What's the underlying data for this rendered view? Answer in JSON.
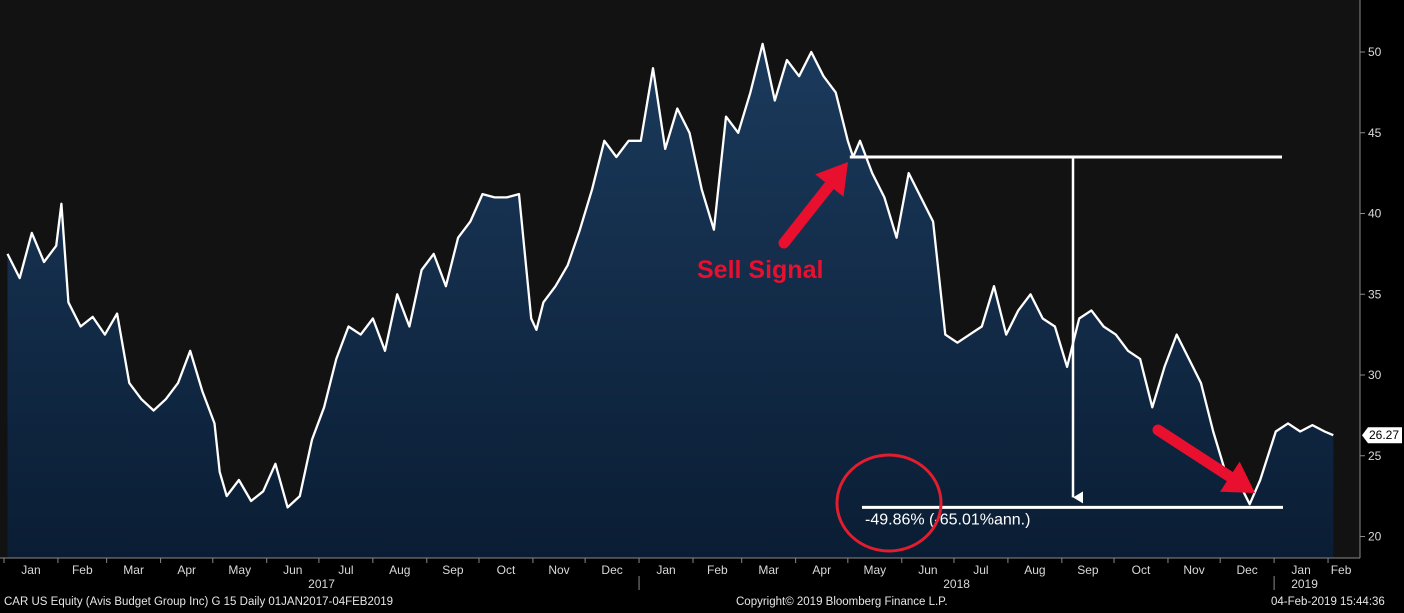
{
  "chart_data": {
    "type": "area",
    "ticker_label": "CAR US Equity (Avis Budget Group Inc) G 15  Daily 01JAN2017-04FEB2019",
    "copyright": "Copyright© 2019 Bloomberg Finance L.P.",
    "timestamp": "04-Feb-2019 15:44:36",
    "y_ticks": [
      20,
      25,
      30,
      35,
      40,
      45,
      50
    ],
    "ylim": [
      18.9,
      52.3
    ],
    "last_value_label": "26.27",
    "last_value": 26.27,
    "x_months": [
      "Jan",
      "Feb",
      "Mar",
      "Apr",
      "May",
      "Jun",
      "Jul",
      "Aug",
      "Sep",
      "Oct",
      "Nov",
      "Dec",
      "Jan",
      "Feb",
      "Mar",
      "Apr",
      "May",
      "Jun",
      "Jul",
      "Aug",
      "Sep",
      "Oct",
      "Nov",
      "Dec",
      "Jan",
      "Feb"
    ],
    "years": [
      "2017",
      "2018",
      "2019"
    ],
    "series": [
      {
        "x": [
          "2017-01-03",
          "2017-01-10",
          "2017-01-17",
          "2017-01-24",
          "2017-01-31",
          "2017-02-03",
          "2017-02-07",
          "2017-02-14",
          "2017-02-21",
          "2017-02-28",
          "2017-03-07",
          "2017-03-14",
          "2017-03-21",
          "2017-03-28",
          "2017-04-04",
          "2017-04-11",
          "2017-04-18",
          "2017-04-25",
          "2017-05-02",
          "2017-05-05",
          "2017-05-09",
          "2017-05-16",
          "2017-05-23",
          "2017-05-30",
          "2017-06-06",
          "2017-06-13",
          "2017-06-20",
          "2017-06-27",
          "2017-07-04",
          "2017-07-11",
          "2017-07-18",
          "2017-07-25",
          "2017-08-01",
          "2017-08-08",
          "2017-08-15",
          "2017-08-22",
          "2017-08-29",
          "2017-09-05",
          "2017-09-12",
          "2017-09-19",
          "2017-09-26",
          "2017-10-03",
          "2017-10-10",
          "2017-10-17",
          "2017-10-24",
          "2017-10-31",
          "2017-11-03",
          "2017-11-07",
          "2017-11-14",
          "2017-11-21",
          "2017-11-28",
          "2017-12-05",
          "2017-12-12",
          "2017-12-19",
          "2017-12-26",
          "2018-01-02",
          "2018-01-09",
          "2018-01-16",
          "2018-01-23",
          "2018-01-30",
          "2018-02-06",
          "2018-02-13",
          "2018-02-20",
          "2018-02-27",
          "2018-03-06",
          "2018-03-13",
          "2018-03-20",
          "2018-03-27",
          "2018-04-03",
          "2018-04-10",
          "2018-04-17",
          "2018-04-24",
          "2018-05-01",
          "2018-05-04",
          "2018-05-08",
          "2018-05-15",
          "2018-05-22",
          "2018-05-29",
          "2018-06-05",
          "2018-06-12",
          "2018-06-19",
          "2018-06-26",
          "2018-07-03",
          "2018-07-10",
          "2018-07-17",
          "2018-07-24",
          "2018-07-31",
          "2018-08-07",
          "2018-08-14",
          "2018-08-21",
          "2018-08-28",
          "2018-09-04",
          "2018-09-11",
          "2018-09-18",
          "2018-09-25",
          "2018-10-02",
          "2018-10-09",
          "2018-10-16",
          "2018-10-23",
          "2018-10-30",
          "2018-11-06",
          "2018-11-13",
          "2018-11-20",
          "2018-11-27",
          "2018-12-04",
          "2018-12-11",
          "2018-12-18",
          "2018-12-24",
          "2019-01-02",
          "2019-01-09",
          "2019-01-16",
          "2019-01-23",
          "2019-01-30",
          "2019-02-04"
        ],
        "y": [
          37.5,
          36.0,
          38.8,
          37.0,
          38.0,
          40.6,
          34.5,
          33.0,
          33.6,
          32.5,
          33.8,
          29.5,
          28.5,
          27.8,
          28.5,
          29.5,
          31.5,
          29.0,
          27.0,
          24.0,
          22.5,
          23.5,
          22.2,
          22.8,
          24.5,
          21.8,
          22.5,
          26.0,
          28.0,
          31.0,
          33.0,
          32.5,
          33.5,
          31.5,
          35.0,
          33.0,
          36.5,
          37.5,
          35.5,
          38.5,
          39.5,
          41.2,
          41.0,
          41.0,
          41.2,
          33.5,
          32.8,
          34.5,
          35.5,
          36.8,
          39.0,
          41.5,
          44.5,
          43.5,
          44.5,
          44.5,
          49.0,
          44.0,
          46.5,
          45.0,
          41.5,
          39.0,
          46.0,
          45.0,
          47.5,
          50.5,
          47.0,
          49.5,
          48.5,
          50.0,
          48.5,
          47.5,
          44.5,
          43.5,
          44.5,
          42.5,
          41.0,
          38.5,
          42.5,
          41.0,
          39.5,
          32.5,
          32.0,
          32.5,
          33.0,
          35.5,
          32.5,
          34.0,
          35.0,
          33.5,
          33.0,
          30.5,
          33.5,
          34.0,
          33.0,
          32.5,
          31.5,
          31.0,
          28.0,
          30.5,
          32.5,
          31.0,
          29.5,
          26.5,
          24.0,
          23.5,
          22.0,
          23.5,
          26.5,
          27.0,
          26.5,
          26.9,
          26.5,
          26.27
        ]
      }
    ],
    "annotation_sell_label": "Sell Signal",
    "annotation_change_label": "-49.86% (-65.01%ann.)",
    "colors": {
      "background": "#000000",
      "plot_background": "#121212",
      "area_top": "#1b3a5c",
      "area_bottom": "#0a1d34",
      "line": "#ffffff",
      "arrow": "#e8102e",
      "circle": "#e11d2e",
      "axis_text": "#d9d9d9"
    }
  }
}
